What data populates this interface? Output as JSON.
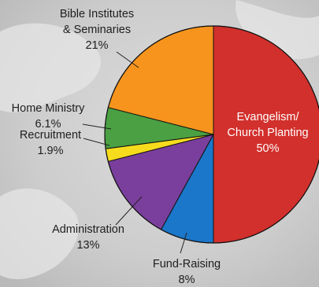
{
  "chart_data": {
    "type": "pie",
    "categories": [
      "Evangelism/\nChurch Planting",
      "Fund-Raising",
      "Administration",
      "Recruitment",
      "Home Ministry",
      "Bible Institutes\n& Seminaries"
    ],
    "values": [
      50,
      8,
      13,
      1.9,
      6.1,
      21
    ],
    "value_labels": [
      "50%",
      "8%",
      "13%",
      "1.9%",
      "6.1%",
      "21%"
    ],
    "colors": [
      "#d2302c",
      "#1a77c9",
      "#7a3f9c",
      "#f7dc1e",
      "#4aa042",
      "#f7941d"
    ]
  }
}
